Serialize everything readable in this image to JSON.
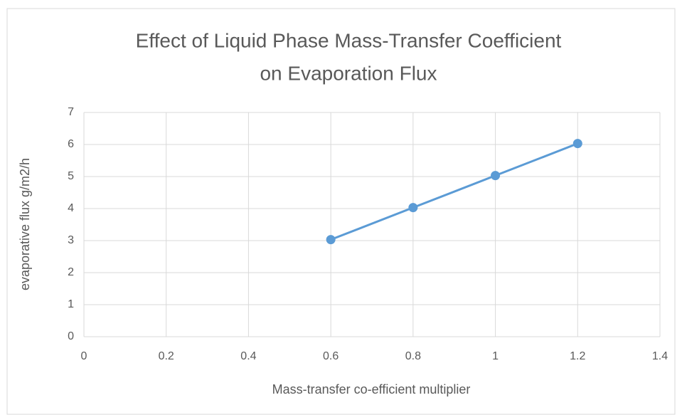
{
  "chart_data": {
    "type": "line",
    "title": [
      "Effect of Liquid Phase Mass-Transfer Coefficient",
      "on Evaporation Flux"
    ],
    "x_label": "Mass-transfer co-efficient multiplier",
    "y_label": "evaporative flux g/m2/h",
    "x": [
      0.6,
      0.8,
      1,
      1.2
    ],
    "series": [
      {
        "name": "evaporative flux",
        "color": "#5b9bd5",
        "values": [
          3.03,
          4.03,
          5.03,
          6.03
        ]
      }
    ],
    "xlim": [
      0,
      1.4
    ],
    "xticks": [
      0,
      0.2,
      0.4,
      0.6,
      0.8,
      1,
      1.2,
      1.4
    ],
    "ylim": [
      0,
      7
    ],
    "yticks": [
      0,
      1,
      2,
      3,
      4,
      5,
      6,
      7
    ],
    "grid": true,
    "markers": true
  }
}
